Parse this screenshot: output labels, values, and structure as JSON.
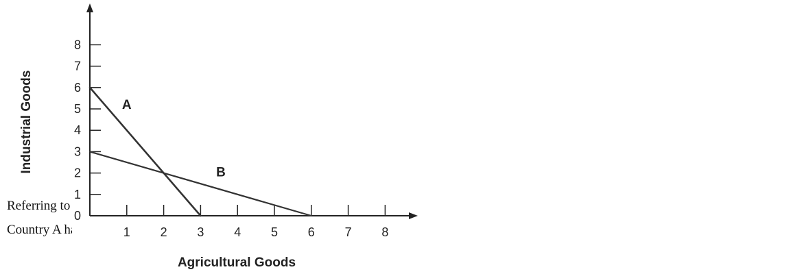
{
  "question": {
    "line1": "Referring to production possibility curves A and B, respectively,",
    "line2": "Country A has a comparative advantage in production of:"
  },
  "chart_data": {
    "type": "line",
    "xlabel": "Agricultural Goods",
    "ylabel": "Industrial Goods",
    "xlim": [
      0,
      9
    ],
    "ylim": [
      0,
      9
    ],
    "xticks": [
      1,
      2,
      3,
      4,
      5,
      6,
      7,
      8
    ],
    "yticks": [
      0,
      1,
      2,
      3,
      4,
      5,
      6,
      7,
      8
    ],
    "series": [
      {
        "name": "A",
        "x": [
          0,
          3
        ],
        "y": [
          6,
          0
        ],
        "label_at": [
          1.0,
          5.0
        ]
      },
      {
        "name": "B",
        "x": [
          0,
          6
        ],
        "y": [
          3,
          0
        ],
        "label_at": [
          3.55,
          1.85
        ]
      }
    ],
    "grid": false,
    "colors": {
      "axis": "#222222",
      "line": "#333333"
    }
  }
}
